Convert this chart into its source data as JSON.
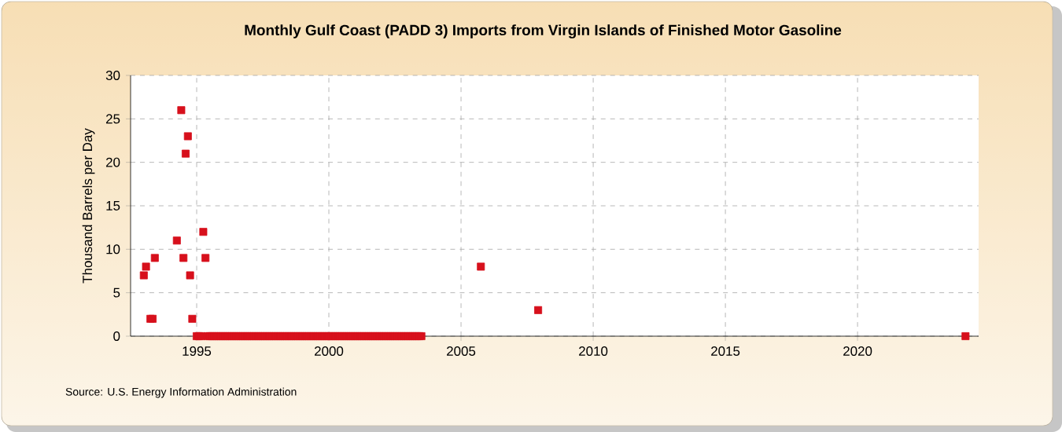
{
  "chart_data": {
    "type": "scatter",
    "title": "Monthly Gulf Coast (PADD 3) Imports from Virgin Islands of Finished Motor Gasoline",
    "ylabel": "Thousand Barrels per Day",
    "annotations": [
      "Source: U.S. Energy Information Administration"
    ],
    "x": [
      "1993-01",
      "1993-02",
      "1993-04",
      "1993-05",
      "1993-06",
      "1994-04",
      "1994-06",
      "1994-07",
      "1994-08",
      "1994-09",
      "1994-10",
      "1994-11",
      "1995-01",
      "1995-02",
      "1995-03",
      "1995-04",
      "1995-05",
      "1995-06",
      "1995-07",
      "1995-08",
      "1995-09",
      "1995-10",
      "1995-11",
      "1995-12",
      "1996-01",
      "1996-02",
      "1996-03",
      "1996-04",
      "1996-05",
      "1996-06",
      "1996-07",
      "1996-08",
      "1996-09",
      "1996-10",
      "1996-11",
      "1996-12",
      "1997-01",
      "1997-02",
      "1997-03",
      "1997-04",
      "1997-05",
      "1997-06",
      "1997-07",
      "1997-08",
      "1997-09",
      "1997-10",
      "1997-11",
      "1997-12",
      "1998-01",
      "1998-02",
      "1998-03",
      "1998-04",
      "1998-05",
      "1998-06",
      "1998-07",
      "1998-08",
      "1998-09",
      "1998-10",
      "1998-11",
      "1998-12",
      "1999-01",
      "1999-02",
      "1999-03",
      "1999-04",
      "1999-05",
      "1999-06",
      "1999-07",
      "1999-08",
      "1999-09",
      "1999-10",
      "1999-11",
      "1999-12",
      "2000-01",
      "2000-02",
      "2000-03",
      "2000-04",
      "2000-05",
      "2000-06",
      "2000-07",
      "2000-08",
      "2000-09",
      "2000-10",
      "2000-11",
      "2000-12",
      "2001-01",
      "2001-02",
      "2001-03",
      "2001-04",
      "2001-05",
      "2001-06",
      "2001-07",
      "2001-08",
      "2001-09",
      "2001-10",
      "2001-11",
      "2001-12",
      "2002-01",
      "2002-02",
      "2002-03",
      "2002-04",
      "2002-05",
      "2002-06",
      "2002-07",
      "2002-08",
      "2002-09",
      "2002-10",
      "2002-11",
      "2002-12",
      "2003-01",
      "2003-02",
      "2003-03",
      "2003-04",
      "2003-05",
      "2003-06",
      "2003-07",
      "2005-10",
      "2007-12",
      "2024-02"
    ],
    "values": [
      7,
      8,
      2,
      2,
      9,
      11,
      26,
      9,
      21,
      23,
      7,
      2,
      0,
      0,
      0,
      12,
      9,
      0,
      0,
      0,
      0,
      0,
      0,
      0,
      0,
      0,
      0,
      0,
      0,
      0,
      0,
      0,
      0,
      0,
      0,
      0,
      0,
      0,
      0,
      0,
      0,
      0,
      0,
      0,
      0,
      0,
      0,
      0,
      0,
      0,
      0,
      0,
      0,
      0,
      0,
      0,
      0,
      0,
      0,
      0,
      0,
      0,
      0,
      0,
      0,
      0,
      0,
      0,
      0,
      0,
      0,
      0,
      0,
      0,
      0,
      0,
      0,
      0,
      0,
      0,
      0,
      0,
      0,
      0,
      0,
      0,
      0,
      0,
      0,
      0,
      0,
      0,
      0,
      0,
      0,
      0,
      0,
      0,
      0,
      0,
      0,
      0,
      0,
      0,
      0,
      0,
      0,
      0,
      0,
      0,
      0,
      0,
      0,
      0,
      0,
      8,
      3,
      0
    ],
    "color": "#d7101c",
    "marker": "square",
    "grid": true,
    "xlim": [
      "1992-07",
      "2024-08"
    ],
    "xticks": [
      "1995",
      "2000",
      "2005",
      "2010",
      "2015",
      "2020"
    ],
    "ylim": [
      0,
      30
    ],
    "yticks": [
      0,
      5,
      10,
      15,
      20,
      25,
      30
    ]
  }
}
